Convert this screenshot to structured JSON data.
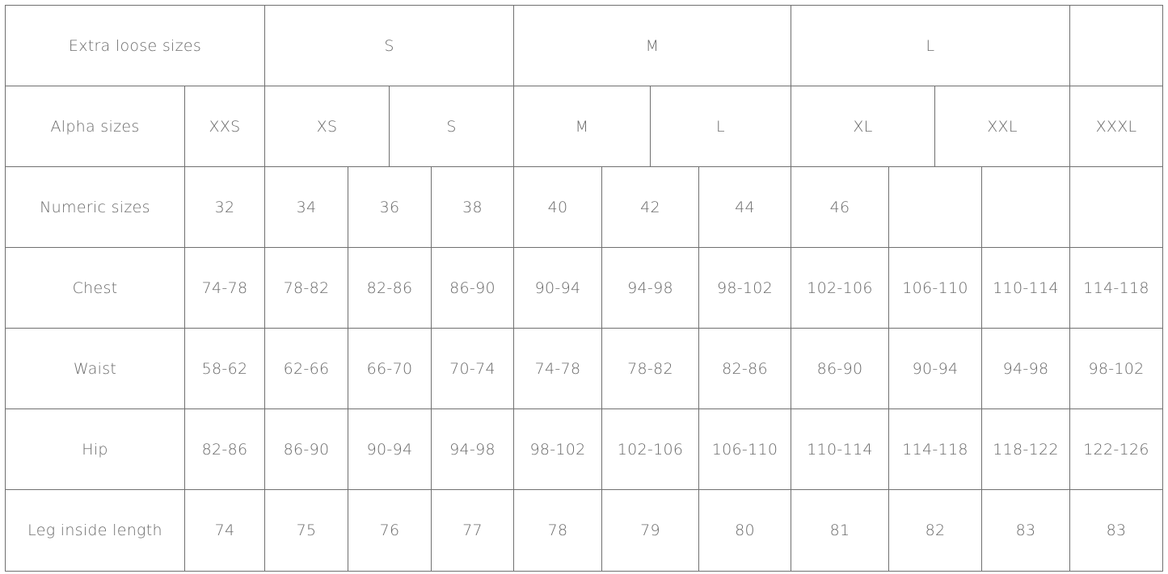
{
  "size_chart": {
    "rows": [
      {
        "name": "extra-loose-sizes",
        "cells": [
          "Extra loose sizes",
          "S",
          "M",
          "L",
          ""
        ]
      },
      {
        "name": "alpha-sizes",
        "cells": [
          "Alpha sizes",
          "XXS",
          "XS",
          "S",
          "M",
          "L",
          "XL",
          "XXL",
          "XXXL"
        ]
      },
      {
        "name": "numeric-sizes",
        "cells": [
          "Numeric sizes",
          "32",
          "34",
          "36",
          "38",
          "40",
          "42",
          "44",
          "46",
          "",
          "",
          ""
        ]
      },
      {
        "name": "chest",
        "cells": [
          "Chest",
          "74-78",
          "78-82",
          "82-86",
          "86-90",
          "90-94",
          "94-98",
          "98-102",
          "102-106",
          "106-110",
          "110-114",
          "114-118"
        ]
      },
      {
        "name": "waist",
        "cells": [
          "Waist",
          "58-62",
          "62-66",
          "66-70",
          "70-74",
          "74-78",
          "78-82",
          "82-86",
          "86-90",
          "90-94",
          "94-98",
          "98-102"
        ]
      },
      {
        "name": "hip",
        "cells": [
          "Hip",
          "82-86",
          "86-90",
          "90-94",
          "94-98",
          "98-102",
          "102-106",
          "106-110",
          "110-114",
          "114-118",
          "118-122",
          "122-126"
        ]
      },
      {
        "name": "leg-inside-length",
        "cells": [
          "Leg inside length",
          "74",
          "75",
          "76",
          "77",
          "78",
          "79",
          "80",
          "81",
          "82",
          "83",
          "83"
        ]
      }
    ]
  }
}
